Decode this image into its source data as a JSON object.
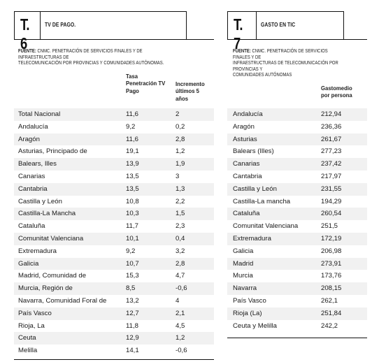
{
  "t6": {
    "code": "T. 6",
    "title": "TV DE PAGO.",
    "source_label": "FUENTE:",
    "source_text": " CNMC. PENETRACIÓN DE SERVICIOS FINALES Y DE INFRAESTRUCTURAS DE",
    "source_text2": "TELECOMUNICACIÓN POR PROVINCIAS Y COMUNIDADES AUTÓNOMAS.",
    "col_penetration": [
      "Tasa",
      "Penetración TV",
      "Pago"
    ],
    "col_increment": [
      "Incremento",
      "últimos 5 años"
    ],
    "rows": [
      {
        "region": "Total Nacional",
        "rate": "11,6",
        "increment": "2"
      },
      {
        "region": "Andalucía",
        "rate": "9,2",
        "increment": "0,2"
      },
      {
        "region": "Aragón",
        "rate": "11,6",
        "increment": "2,8"
      },
      {
        "region": "Asturias, Principado de",
        "rate": "19,1",
        "increment": "1,2"
      },
      {
        "region": "Balears, Illes",
        "rate": "13,9",
        "increment": "1,9"
      },
      {
        "region": "Canarias",
        "rate": "13,5",
        "increment": "3"
      },
      {
        "region": "Cantabria",
        "rate": "13,5",
        "increment": "1,3"
      },
      {
        "region": "Castilla y León",
        "rate": "10,8",
        "increment": "2,2"
      },
      {
        "region": "Castilla-La Mancha",
        "rate": "10,3",
        "increment": "1,5"
      },
      {
        "region": "Cataluña",
        "rate": "11,7",
        "increment": "2,3"
      },
      {
        "region": "Comunitat Valenciana",
        "rate": "10,1",
        "increment": "0,4"
      },
      {
        "region": "Extremadura",
        "rate": "9,2",
        "increment": "3,2"
      },
      {
        "region": "Galicia",
        "rate": "10,7",
        "increment": "2,8"
      },
      {
        "region": "Madrid, Comunidad de",
        "rate": "15,3",
        "increment": "4,7"
      },
      {
        "region": "Murcia, Región de",
        "rate": "8,5",
        "increment": "-0,6"
      },
      {
        "region": "Navarra, Comunidad Foral de",
        "rate": "13,2",
        "increment": "4"
      },
      {
        "region": "País Vasco",
        "rate": "12,7",
        "increment": "2,1"
      },
      {
        "region": "Rioja, La",
        "rate": "11,8",
        "increment": "4,5"
      },
      {
        "region": "Ceuta",
        "rate": "12,9",
        "increment": "1,2"
      },
      {
        "region": "Melilla",
        "rate": "14,1",
        "increment": "-0,6"
      }
    ]
  },
  "t7": {
    "code": "T. 7",
    "title": "GASTO EN TIC",
    "source_label": "FUENTE:",
    "source_text": " CNMC. PENETRACIÓN DE SERVICIOS FINALES Y DE",
    "source_text2": "INFRAESTRUCTURAS DE TELECOMUNICACIÓN POR PROVINCIAS Y",
    "source_text3": "COMUNIDADES AUTÓNOMAS",
    "col_spend": [
      "Gastomedio",
      "por persona"
    ],
    "rows": [
      {
        "region": "Andalucía",
        "spend": "212,94"
      },
      {
        "region": "Aragón",
        "spend": "236,36"
      },
      {
        "region": "Asturias",
        "spend": "261,67"
      },
      {
        "region": "Balears (Illes)",
        "spend": "277,23"
      },
      {
        "region": "Canarias",
        "spend": "237,42"
      },
      {
        "region": "Cantabria",
        "spend": "217,97"
      },
      {
        "region": "Castilla y León",
        "spend": "231,55"
      },
      {
        "region": "Castilla-La mancha",
        "spend": "194,29"
      },
      {
        "region": "Cataluña",
        "spend": "260,54"
      },
      {
        "region": "Comunitat Valenciana",
        "spend": "251,5"
      },
      {
        "region": "Extremadura",
        "spend": "172,19"
      },
      {
        "region": "Galicia",
        "spend": "206,98"
      },
      {
        "region": "Madrid",
        "spend": "273,91"
      },
      {
        "region": "Murcia",
        "spend": "173,76"
      },
      {
        "region": "Navarra",
        "spend": "208,15"
      },
      {
        "region": "País Vasco",
        "spend": "262,1"
      },
      {
        "region": "Rioja (La)",
        "spend": "251,84"
      },
      {
        "region": "Ceuta y Melilla",
        "spend": "242,2"
      }
    ]
  }
}
